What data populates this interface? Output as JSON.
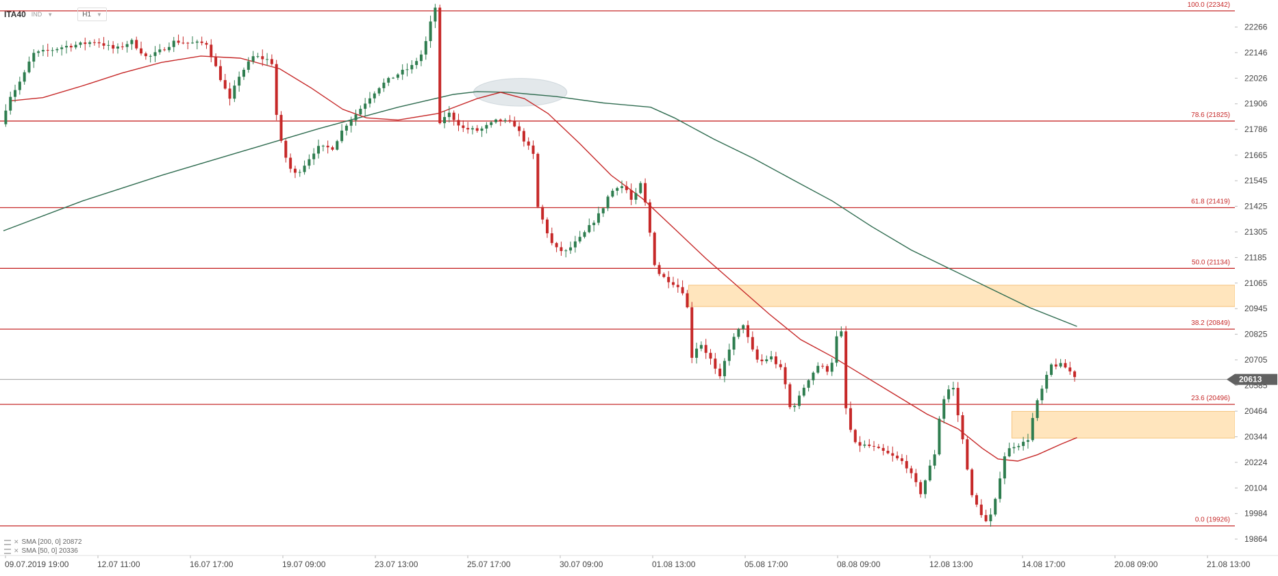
{
  "header": {
    "symbol": "ITA40",
    "symbol_type": "IND",
    "timeframe": "H1"
  },
  "legend": [
    {
      "label": "SMA [200, 0] 20872",
      "color": "#2e6b4f"
    },
    {
      "label": "SMA [50, 0] 20336",
      "color": "#c62828"
    }
  ],
  "colors": {
    "bull": "#2e7d4f",
    "bear": "#c62828",
    "level": "#c62828",
    "zone": "#ffe0b2",
    "current": "#616161"
  },
  "chart_data": {
    "type": "candlestick",
    "ylim": [
      19800,
      22380
    ],
    "y_ticks": [
      22266,
      22146,
      22026,
      21906,
      21786,
      21665,
      21545,
      21425,
      21305,
      21185,
      21065,
      20945,
      20825,
      20705,
      20585,
      20464,
      20344,
      20224,
      20104,
      19984,
      19864
    ],
    "x_ticks": [
      "09.07.2019 19:00",
      "12.07 11:00",
      "16.07 17:00",
      "19.07 09:00",
      "23.07 13:00",
      "25.07 17:00",
      "30.07 09:00",
      "01.08 13:00",
      "05.08 17:00",
      "08.08 09:00",
      "12.08 13:00",
      "14.08 17:00",
      "20.08 09:00",
      "21.08 13:00"
    ],
    "current_price": {
      "value": 20613,
      "label": "20613"
    },
    "fib_levels": [
      {
        "pct": "100.0",
        "value": 22342,
        "label": "100.0 (22342)"
      },
      {
        "pct": "78.6",
        "value": 21825,
        "label": "78.6 (21825)"
      },
      {
        "pct": "61.8",
        "value": 21419,
        "label": "61.8 (21419)"
      },
      {
        "pct": "50.0",
        "value": 21134,
        "label": "50.0 (21134)"
      },
      {
        "pct": "38.2",
        "value": 20849,
        "label": "38.2 (20849)"
      },
      {
        "pct": "23.6",
        "value": 20496,
        "label": "23.6 (20496)"
      },
      {
        "pct": "0.0",
        "value": 19926,
        "label": "0.0 (19926)"
      }
    ],
    "zones": [
      {
        "from_x": 0.5564,
        "to_x": 1.0,
        "from_y": 20955,
        "to_y": 21055
      },
      {
        "from_x": 0.8189,
        "to_x": 1.0,
        "from_y": 20338,
        "to_y": 20463
      }
    ],
    "highlight": {
      "cx": 0.4197,
      "cy": 21960,
      "rx": 0.0379,
      "ry": 65
    },
    "anchors": [
      [
        0.0,
        21810
      ],
      [
        0.0064,
        21935
      ],
      [
        0.0128,
        21985
      ],
      [
        0.0192,
        22050
      ],
      [
        0.0256,
        22140
      ],
      [
        0.0385,
        22155
      ],
      [
        0.0513,
        22175
      ],
      [
        0.0641,
        22185
      ],
      [
        0.0769,
        22200
      ],
      [
        0.0929,
        22160
      ],
      [
        0.1058,
        22200
      ],
      [
        0.1186,
        22120
      ],
      [
        0.1282,
        22150
      ],
      [
        0.141,
        22200
      ],
      [
        0.1538,
        22190
      ],
      [
        0.1667,
        22190
      ],
      [
        0.1763,
        22050
      ],
      [
        0.1859,
        21920
      ],
      [
        0.1923,
        22030
      ],
      [
        0.2051,
        22130
      ],
      [
        0.2179,
        22110
      ],
      [
        0.2212,
        22090
      ],
      [
        0.2244,
        21780
      ],
      [
        0.2308,
        21660
      ],
      [
        0.2372,
        21570
      ],
      [
        0.2436,
        21600
      ],
      [
        0.2564,
        21700
      ],
      [
        0.2692,
        21700
      ],
      [
        0.2788,
        21800
      ],
      [
        0.2885,
        21860
      ],
      [
        0.2981,
        21930
      ],
      [
        0.3077,
        21990
      ],
      [
        0.3205,
        22040
      ],
      [
        0.3333,
        22080
      ],
      [
        0.3429,
        22150
      ],
      [
        0.3494,
        22300
      ],
      [
        0.3526,
        22360
      ],
      [
        0.3558,
        21800
      ],
      [
        0.3622,
        21870
      ],
      [
        0.375,
        21790
      ],
      [
        0.3878,
        21780
      ],
      [
        0.4038,
        21830
      ],
      [
        0.4167,
        21810
      ],
      [
        0.4263,
        21720
      ],
      [
        0.4327,
        21660
      ],
      [
        0.4359,
        21420
      ],
      [
        0.4423,
        21320
      ],
      [
        0.4487,
        21230
      ],
      [
        0.4583,
        21210
      ],
      [
        0.4712,
        21280
      ],
      [
        0.4872,
        21400
      ],
      [
        0.4936,
        21480
      ],
      [
        0.5,
        21520
      ],
      [
        0.5064,
        21520
      ],
      [
        0.5128,
        21440
      ],
      [
        0.5192,
        21530
      ],
      [
        0.5256,
        21380
      ],
      [
        0.5288,
        21180
      ],
      [
        0.5353,
        21100
      ],
      [
        0.5449,
        21070
      ],
      [
        0.5513,
        21040
      ],
      [
        0.5545,
        21020
      ],
      [
        0.5577,
        20935
      ],
      [
        0.5609,
        20720
      ],
      [
        0.5673,
        20790
      ],
      [
        0.5769,
        20700
      ],
      [
        0.5833,
        20610
      ],
      [
        0.5897,
        20740
      ],
      [
        0.5962,
        20820
      ],
      [
        0.6026,
        20875
      ],
      [
        0.609,
        20760
      ],
      [
        0.6154,
        20690
      ],
      [
        0.625,
        20720
      ],
      [
        0.6346,
        20650
      ],
      [
        0.641,
        20470
      ],
      [
        0.6474,
        20520
      ],
      [
        0.6538,
        20600
      ],
      [
        0.6635,
        20680
      ],
      [
        0.6731,
        20650
      ],
      [
        0.6795,
        20840
      ],
      [
        0.6827,
        20830
      ],
      [
        0.6859,
        20480
      ],
      [
        0.6923,
        20310
      ],
      [
        0.7051,
        20300
      ],
      [
        0.7179,
        20270
      ],
      [
        0.734,
        20220
      ],
      [
        0.7468,
        20080
      ],
      [
        0.7596,
        20290
      ],
      [
        0.7628,
        20490
      ],
      [
        0.7724,
        20600
      ],
      [
        0.7756,
        20490
      ],
      [
        0.7821,
        20290
      ],
      [
        0.7885,
        20060
      ],
      [
        0.8013,
        19930
      ],
      [
        0.8077,
        20050
      ],
      [
        0.8141,
        20250
      ],
      [
        0.8205,
        20300
      ],
      [
        0.8333,
        20320
      ],
      [
        0.8397,
        20480
      ],
      [
        0.8462,
        20580
      ],
      [
        0.8526,
        20680
      ],
      [
        0.8622,
        20680
      ],
      [
        0.8718,
        20630
      ]
    ],
    "series": [
      {
        "name": "SMA [200, 0]",
        "color": "#2e6b4f",
        "points": [
          [
            0.0,
            21310
          ],
          [
            0.0641,
            21450
          ],
          [
            0.1282,
            21570
          ],
          [
            0.1923,
            21680
          ],
          [
            0.2564,
            21790
          ],
          [
            0.3205,
            21890
          ],
          [
            0.3654,
            21950
          ],
          [
            0.3846,
            21963
          ],
          [
            0.4103,
            21960
          ],
          [
            0.4487,
            21940
          ],
          [
            0.4872,
            21910
          ],
          [
            0.5256,
            21890
          ],
          [
            0.5449,
            21840
          ],
          [
            0.5769,
            21740
          ],
          [
            0.609,
            21650
          ],
          [
            0.641,
            21550
          ],
          [
            0.6731,
            21450
          ],
          [
            0.7051,
            21330
          ],
          [
            0.7372,
            21220
          ],
          [
            0.7692,
            21130
          ],
          [
            0.8013,
            21040
          ],
          [
            0.8333,
            20950
          ],
          [
            0.8718,
            20862
          ]
        ]
      },
      {
        "name": "SMA [50, 0]",
        "color": "#c62828",
        "points": [
          [
            0.0064,
            21920
          ],
          [
            0.0321,
            21935
          ],
          [
            0.0641,
            21990
          ],
          [
            0.0962,
            22050
          ],
          [
            0.1282,
            22100
          ],
          [
            0.1603,
            22130
          ],
          [
            0.1923,
            22120
          ],
          [
            0.2244,
            22070
          ],
          [
            0.25,
            21980
          ],
          [
            0.2756,
            21880
          ],
          [
            0.2949,
            21840
          ],
          [
            0.3205,
            21830
          ],
          [
            0.3526,
            21860
          ],
          [
            0.3846,
            21930
          ],
          [
            0.4038,
            21960
          ],
          [
            0.4231,
            21930
          ],
          [
            0.4423,
            21860
          ],
          [
            0.4679,
            21720
          ],
          [
            0.4936,
            21570
          ],
          [
            0.5192,
            21460
          ],
          [
            0.5449,
            21320
          ],
          [
            0.5705,
            21180
          ],
          [
            0.5962,
            21050
          ],
          [
            0.6218,
            20920
          ],
          [
            0.6474,
            20800
          ],
          [
            0.6731,
            20720
          ],
          [
            0.6987,
            20630
          ],
          [
            0.7244,
            20540
          ],
          [
            0.75,
            20450
          ],
          [
            0.7756,
            20380
          ],
          [
            0.7949,
            20290
          ],
          [
            0.8077,
            20240
          ],
          [
            0.8237,
            20230
          ],
          [
            0.8397,
            20260
          ],
          [
            0.859,
            20310
          ],
          [
            0.8718,
            20340
          ]
        ]
      }
    ]
  }
}
